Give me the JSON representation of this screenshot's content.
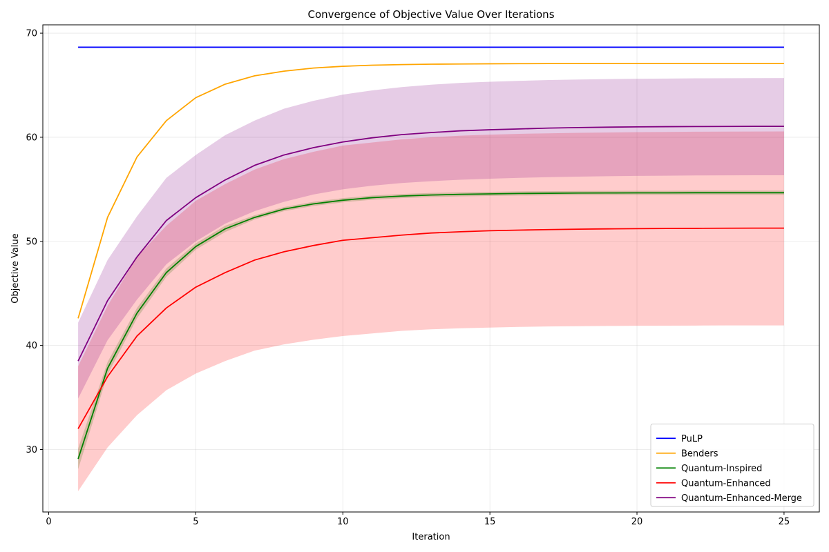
{
  "chart_data": {
    "type": "line",
    "title": "Convergence of Objective Value Over Iterations",
    "xlabel": "Iteration",
    "ylabel": "Objective Value",
    "xlim": [
      -0.2,
      26.2
    ],
    "ylim": [
      24.0,
      70.8
    ],
    "xticks": [
      0,
      5,
      10,
      15,
      20,
      25
    ],
    "yticks": [
      30,
      40,
      50,
      60,
      70
    ],
    "grid": true,
    "legend_position": "lower-right",
    "x": [
      1,
      2,
      3,
      4,
      5,
      6,
      7,
      8,
      9,
      10,
      11,
      12,
      13,
      14,
      15,
      16,
      17,
      18,
      19,
      20,
      21,
      22,
      23,
      24,
      25
    ],
    "series": [
      {
        "name": "PuLP",
        "color": "#0000ff",
        "values": [
          68.65,
          68.65,
          68.65,
          68.65,
          68.65,
          68.65,
          68.65,
          68.65,
          68.65,
          68.65,
          68.65,
          68.65,
          68.65,
          68.65,
          68.65,
          68.65,
          68.65,
          68.65,
          68.65,
          68.65,
          68.65,
          68.65,
          68.65,
          68.65,
          68.65
        ]
      },
      {
        "name": "Benders",
        "color": "#ffa500",
        "values": [
          42.6,
          52.3,
          58.1,
          61.6,
          63.8,
          65.1,
          65.9,
          66.35,
          66.65,
          66.82,
          66.92,
          66.98,
          67.02,
          67.04,
          67.06,
          67.07,
          67.08,
          67.08,
          67.09,
          67.09,
          67.09,
          67.09,
          67.09,
          67.09,
          67.09
        ]
      },
      {
        "name": "Quantum-Inspired",
        "color": "#008000",
        "values": [
          29.1,
          37.8,
          43.1,
          47.0,
          49.5,
          51.2,
          52.3,
          53.1,
          53.6,
          53.95,
          54.2,
          54.35,
          54.45,
          54.52,
          54.56,
          54.6,
          54.62,
          54.64,
          54.65,
          54.66,
          54.66,
          54.67,
          54.67,
          54.67,
          54.67
        ],
        "band_lower": [
          28.1,
          37.2,
          42.6,
          46.6,
          49.2,
          50.9,
          52.1,
          52.9,
          53.4,
          53.75,
          54.0,
          54.15,
          54.25,
          54.32,
          54.36,
          54.4,
          54.42,
          54.44,
          54.45,
          54.46,
          54.46,
          54.47,
          54.47,
          54.47,
          54.47
        ],
        "band_upper": [
          30.1,
          38.4,
          43.6,
          47.4,
          49.8,
          51.5,
          52.5,
          53.3,
          53.8,
          54.15,
          54.4,
          54.55,
          54.65,
          54.72,
          54.76,
          54.8,
          54.82,
          54.84,
          54.85,
          54.86,
          54.86,
          54.87,
          54.87,
          54.87,
          54.87
        ],
        "band_color": "#008000",
        "band_opacity": 0.2
      },
      {
        "name": "Quantum-Enhanced",
        "color": "#ff0000",
        "values": [
          32.0,
          37.0,
          40.9,
          43.6,
          45.6,
          47.0,
          48.2,
          49.0,
          49.6,
          50.1,
          50.35,
          50.6,
          50.8,
          50.92,
          51.02,
          51.08,
          51.13,
          51.17,
          51.2,
          51.22,
          51.24,
          51.25,
          51.26,
          51.27,
          51.27
        ],
        "band_lower": [
          26.0,
          30.2,
          33.3,
          35.7,
          37.3,
          38.5,
          39.5,
          40.1,
          40.55,
          40.9,
          41.15,
          41.4,
          41.55,
          41.65,
          41.72,
          41.78,
          41.82,
          41.85,
          41.87,
          41.89,
          41.9,
          41.91,
          41.92,
          41.92,
          41.92
        ],
        "band_upper": [
          38.0,
          43.8,
          48.5,
          51.5,
          53.9,
          55.5,
          56.9,
          57.9,
          58.6,
          59.2,
          59.5,
          59.8,
          60.0,
          60.15,
          60.25,
          60.33,
          60.38,
          60.43,
          60.46,
          60.49,
          60.51,
          60.53,
          60.54,
          60.55,
          60.56
        ],
        "band_color": "#ff0000",
        "band_opacity": 0.2
      },
      {
        "name": "Quantum-Enhanced-Merge",
        "color": "#800080",
        "values": [
          38.5,
          44.3,
          48.5,
          52.0,
          54.2,
          55.9,
          57.3,
          58.3,
          59.0,
          59.55,
          59.95,
          60.25,
          60.45,
          60.62,
          60.72,
          60.8,
          60.88,
          60.93,
          60.97,
          61.0,
          61.02,
          61.03,
          61.04,
          61.05,
          61.05
        ],
        "band_lower": [
          34.9,
          40.5,
          44.4,
          47.8,
          50.0,
          51.7,
          52.9,
          53.8,
          54.5,
          55.0,
          55.35,
          55.6,
          55.78,
          55.92,
          56.02,
          56.1,
          56.17,
          56.22,
          56.26,
          56.29,
          56.31,
          56.33,
          56.34,
          56.35,
          56.35
        ],
        "band_upper": [
          42.2,
          48.2,
          52.4,
          56.1,
          58.3,
          60.2,
          61.6,
          62.75,
          63.5,
          64.1,
          64.5,
          64.82,
          65.05,
          65.22,
          65.33,
          65.42,
          65.5,
          65.55,
          65.59,
          65.62,
          65.64,
          65.66,
          65.67,
          65.68,
          65.69
        ],
        "band_color": "#800080",
        "band_opacity": 0.2
      }
    ]
  }
}
